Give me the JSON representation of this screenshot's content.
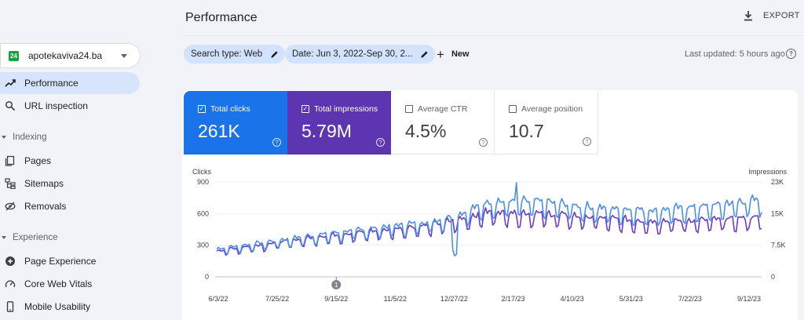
{
  "sidebar": {
    "property": {
      "favicon": "24",
      "name": "apotekaviva24.ba"
    },
    "items": [
      {
        "label": "Performance",
        "icon": "trending-up-icon",
        "active": true
      },
      {
        "label": "URL inspection",
        "icon": "search-icon"
      }
    ],
    "sections": [
      {
        "title": "Indexing",
        "items": [
          {
            "label": "Pages",
            "icon": "pages-icon"
          },
          {
            "label": "Sitemaps",
            "icon": "sitemap-icon"
          },
          {
            "label": "Removals",
            "icon": "removals-icon"
          }
        ]
      },
      {
        "title": "Experience",
        "items": [
          {
            "label": "Page Experience",
            "icon": "page-experience-icon"
          },
          {
            "label": "Core Web Vitals",
            "icon": "speedometer-icon"
          },
          {
            "label": "Mobile Usability",
            "icon": "mobile-icon"
          }
        ]
      }
    ]
  },
  "header": {
    "title": "Performance",
    "export_label": "EXPORT"
  },
  "filters": {
    "search_type": "Search type: Web",
    "date": "Date: Jun 3, 2022-Sep 30, 2...",
    "new_label": "New",
    "last_updated": "Last updated: 5 hours ago"
  },
  "metrics": [
    {
      "label": "Total clicks",
      "value": "261K",
      "checked": true,
      "color": "#1a73e8"
    },
    {
      "label": "Total impressions",
      "value": "5.79M",
      "checked": true,
      "color": "#5e35b1"
    },
    {
      "label": "Average CTR",
      "value": "4.5%",
      "checked": false
    },
    {
      "label": "Average position",
      "value": "10.7",
      "checked": false
    }
  ],
  "chart_data": {
    "type": "line",
    "xlabel": "",
    "ylabel": "Clicks",
    "y2label": "Impressions",
    "yticks": [
      "0",
      "300",
      "600",
      "900"
    ],
    "y2ticks": [
      "0",
      "7.5K",
      "15K",
      "23K"
    ],
    "ylim": [
      0,
      900
    ],
    "y2lim": [
      0,
      23000
    ],
    "xticks": [
      "6/3/22",
      "7/25/22",
      "9/15/22",
      "11/5/22",
      "12/27/22",
      "2/17/23",
      "4/10/23",
      "5/31/23",
      "7/22/23",
      "9/12/23"
    ],
    "annotation": {
      "label": "1",
      "at": "9/15/22"
    },
    "series": [
      {
        "name": "Clicks",
        "color": "#4a8ff0",
        "axis": "left",
        "trend": [
          [
            0,
            260
          ],
          [
            0.1,
            330
          ],
          [
            0.2,
            400
          ],
          [
            0.3,
            460
          ],
          [
            0.4,
            520
          ],
          [
            0.45,
            590
          ],
          [
            0.5,
            700
          ],
          [
            0.6,
            700
          ],
          [
            0.7,
            640
          ],
          [
            0.8,
            620
          ],
          [
            0.9,
            660
          ],
          [
            1,
            720
          ]
        ]
      },
      {
        "name": "Impressions",
        "color": "#6a3cc9",
        "axis": "right",
        "trend": [
          [
            0,
            6200
          ],
          [
            0.1,
            8000
          ],
          [
            0.2,
            9800
          ],
          [
            0.3,
            11000
          ],
          [
            0.4,
            12500
          ],
          [
            0.45,
            13800
          ],
          [
            0.5,
            15500
          ],
          [
            0.6,
            15000
          ],
          [
            0.7,
            14000
          ],
          [
            0.8,
            13200
          ],
          [
            0.9,
            13500
          ],
          [
            1,
            14200
          ]
        ]
      }
    ]
  },
  "colors": {
    "accent": "#1a73e8",
    "impressions": "#5e35b1",
    "active_nav": "#d6e5fc",
    "chip": "#d3e3fd"
  }
}
